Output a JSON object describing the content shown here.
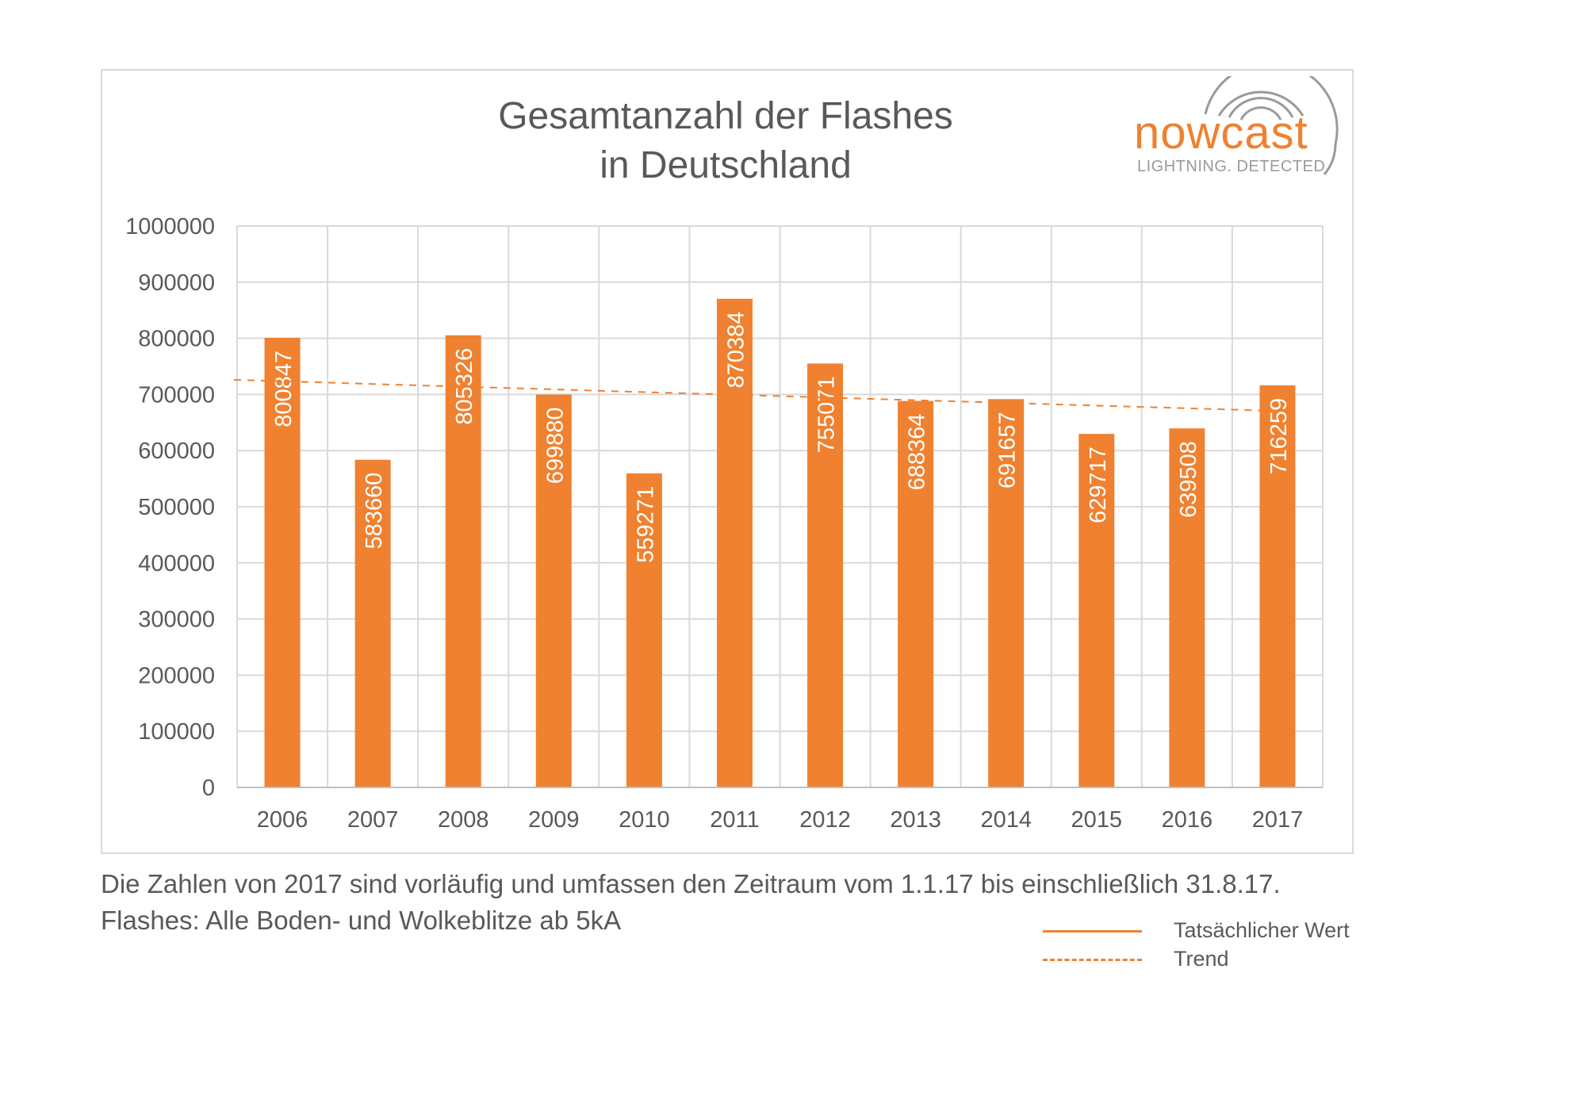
{
  "title_lines": [
    "Gesamtanzahl der Flashes",
    "in Deutschland"
  ],
  "logo": {
    "word": "nowcast",
    "tagline": "LIGHTNING. DETECTED."
  },
  "footnote_lines": [
    "Die Zahlen von 2017 sind vorläufig und umfassen den Zeitraum vom 1.1.17 bis einschließlich 31.8.17.",
    "Flashes: Alle Boden- und Wolkeblitze ab 5kA"
  ],
  "legend": {
    "actual": "Tatsächlicher Wert",
    "trend": "Trend"
  },
  "colors": {
    "bar": "#ef8130",
    "grid": "#d9d9d9",
    "text": "#595959",
    "logo_gray": "#9a9a9a"
  },
  "chart_data": {
    "type": "bar",
    "title": "Gesamtanzahl der Flashes in Deutschland",
    "categories": [
      "2006",
      "2007",
      "2008",
      "2009",
      "2010",
      "2011",
      "2012",
      "2013",
      "2014",
      "2015",
      "2016",
      "2017"
    ],
    "series": [
      {
        "name": "Tatsächlicher Wert",
        "values": [
          800847,
          583660,
          805326,
          699880,
          559271,
          870384,
          755071,
          688364,
          691657,
          629717,
          639508,
          716259
        ]
      }
    ],
    "data_labels": [
      "800847",
      "583660",
      "805326",
      "699880",
      "559271",
      "870384",
      "755071",
      "688364",
      "691657",
      "629717",
      "639508",
      "716259"
    ],
    "trend": {
      "name": "Trend",
      "start": 726000,
      "end": 670000,
      "style": "dashed"
    },
    "ylim": [
      0,
      1000000
    ],
    "yticks": [
      0,
      100000,
      200000,
      300000,
      400000,
      500000,
      600000,
      700000,
      800000,
      900000,
      1000000
    ],
    "ytick_labels": [
      "0",
      "100000",
      "200000",
      "300000",
      "400000",
      "500000",
      "600000",
      "700000",
      "800000",
      "900000",
      "1000000"
    ],
    "grid": true,
    "legend_position": "bottom-right",
    "xlabel": "",
    "ylabel": ""
  }
}
